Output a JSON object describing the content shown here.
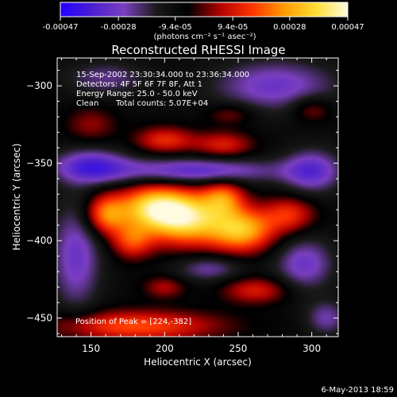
{
  "chart_data": {
    "type": "heatmap",
    "title": "Reconstructed RHESSI Image",
    "xlabel": "Heliocentric X (arcsec)",
    "ylabel": "Heliocentric Y (arcsec)",
    "xlim": [
      127,
      318
    ],
    "ylim": [
      -462,
      -282
    ],
    "x_ticks": [
      150,
      200,
      250,
      300
    ],
    "y_ticks": [
      -300,
      -350,
      -400,
      -450
    ],
    "colorbar": {
      "ticks": [
        "-0.00047",
        "-0.00028",
        "-9.4e-05",
        "9.4e-05",
        "0.00028",
        "0.00047"
      ],
      "tick_values": [
        -0.00047,
        -0.00028,
        -9.4e-05,
        9.4e-05,
        0.00028,
        0.00047
      ],
      "range": [
        -0.00047,
        0.00047
      ],
      "unit_label": "(photons cm⁻² s⁻¹ asec⁻²)",
      "colors": [
        "#2200ff",
        "#4a1fd0",
        "#7a3fbf",
        "#1a1a1a",
        "#000000",
        "#b00000",
        "#ff3300",
        "#ff9a00",
        "#ffdd33",
        "#fffbe0"
      ]
    },
    "annotations": [
      "15-Sep-2002 23:30:34.000 to 23:36:34.000",
      "Detectors: 4F 5F 6F 7F 8F, Att 1",
      "Energy Range: 25.0 - 50.0 keV",
      "Clean",
      "Total counts: 5.07E+04",
      "Position of Peak = [224,-382]"
    ],
    "peak": {
      "x": 224,
      "y": -382
    },
    "footer": "6-May-2013 18:59",
    "sources": [
      {
        "x": 213,
        "y": -385,
        "sx": 18,
        "sy": 12,
        "amp": 1.0
      },
      {
        "x": 190,
        "y": -378,
        "sx": 16,
        "sy": 10,
        "amp": 0.75
      },
      {
        "x": 252,
        "y": -393,
        "sx": 16,
        "sy": 10,
        "amp": 0.85
      },
      {
        "x": 160,
        "y": -383,
        "sx": 10,
        "sy": 9,
        "amp": 0.65
      },
      {
        "x": 285,
        "y": -383,
        "sx": 12,
        "sy": 8,
        "amp": 0.45
      },
      {
        "x": 240,
        "y": -372,
        "sx": 10,
        "sy": 8,
        "amp": 0.55
      },
      {
        "x": 178,
        "y": -400,
        "sx": 10,
        "sy": 8,
        "amp": 0.5
      },
      {
        "x": 200,
        "y": -335,
        "sx": 14,
        "sy": 6,
        "amp": 0.45
      },
      {
        "x": 240,
        "y": -338,
        "sx": 14,
        "sy": 6,
        "amp": 0.4
      },
      {
        "x": 150,
        "y": -325,
        "sx": 12,
        "sy": 8,
        "amp": 0.25
      },
      {
        "x": 245,
        "y": -318,
        "sx": 12,
        "sy": 5,
        "amp": 0.25
      },
      {
        "x": 180,
        "y": -455,
        "sx": 40,
        "sy": 7,
        "amp": 0.55
      },
      {
        "x": 262,
        "y": -432,
        "sx": 16,
        "sy": 6,
        "amp": 0.4
      },
      {
        "x": 200,
        "y": -430,
        "sx": 10,
        "sy": 5,
        "amp": 0.3
      },
      {
        "x": 300,
        "y": -315,
        "sx": 10,
        "sy": 6,
        "amp": 0.3
      },
      {
        "x": 150,
        "y": -352,
        "sx": 18,
        "sy": 8,
        "amp": -0.55
      },
      {
        "x": 220,
        "y": -355,
        "sx": 40,
        "sy": 6,
        "amp": -0.55
      },
      {
        "x": 300,
        "y": -355,
        "sx": 14,
        "sy": 10,
        "amp": -0.5
      },
      {
        "x": 275,
        "y": -300,
        "sx": 30,
        "sy": 12,
        "amp": -0.45
      },
      {
        "x": 140,
        "y": -410,
        "sx": 12,
        "sy": 25,
        "amp": -0.45
      },
      {
        "x": 230,
        "y": -418,
        "sx": 16,
        "sy": 6,
        "amp": -0.35
      },
      {
        "x": 295,
        "y": -415,
        "sx": 14,
        "sy": 12,
        "amp": -0.45
      },
      {
        "x": 160,
        "y": -295,
        "sx": 20,
        "sy": 8,
        "amp": -0.3
      },
      {
        "x": 310,
        "y": -450,
        "sx": 10,
        "sy": 8,
        "amp": -0.35
      }
    ]
  }
}
